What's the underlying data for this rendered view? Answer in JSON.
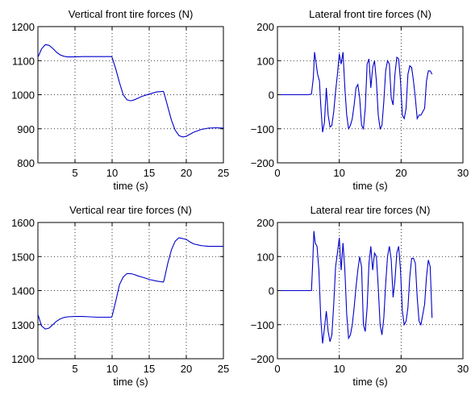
{
  "chart_data": [
    {
      "type": "line",
      "title": "Vertical front tire forces (N)",
      "xlabel": "time (s)",
      "ylabel": "",
      "xlim": [
        0,
        25
      ],
      "ylim": [
        800,
        1200
      ],
      "xticks": [
        5,
        10,
        15,
        20,
        25
      ],
      "yticks": [
        800,
        900,
        1000,
        1100,
        1200
      ],
      "grid": true,
      "color": "#0000cc",
      "series": [
        {
          "x": [
            0,
            0.5,
            1,
            1.5,
            2,
            2.5,
            3,
            3.5,
            4,
            5,
            6,
            7,
            8,
            9,
            9.9,
            10,
            10.5,
            11,
            11.5,
            12,
            12.5,
            13,
            13.5,
            14,
            15,
            16,
            16.9,
            17,
            17.5,
            18,
            18.5,
            19,
            19.5,
            20,
            20.5,
            21,
            22,
            23,
            24,
            25
          ],
          "y": [
            1110,
            1135,
            1147,
            1145,
            1136,
            1125,
            1117,
            1113,
            1111,
            1111,
            1112,
            1112,
            1112,
            1112,
            1112,
            1110,
            1075,
            1035,
            1000,
            985,
            982,
            985,
            990,
            995,
            1002,
            1008,
            1010,
            1005,
            965,
            925,
            896,
            880,
            876,
            878,
            884,
            890,
            898,
            902,
            903,
            902
          ]
        }
      ]
    },
    {
      "type": "line",
      "title": "Lateral front tire forces (N)",
      "xlabel": "time (s)",
      "ylabel": "",
      "xlim": [
        0,
        30
      ],
      "ylim": [
        -200,
        200
      ],
      "xticks": [
        0,
        10,
        20,
        30
      ],
      "yticks": [
        -200,
        -100,
        0,
        100,
        200
      ],
      "grid": true,
      "color": "#0000cc",
      "series": [
        {
          "x": [
            0,
            5,
            5.5,
            5.8,
            6,
            6.2,
            6.5,
            6.8,
            7,
            7.3,
            7.6,
            7.9,
            8.2,
            8.5,
            8.8,
            9.1,
            9.4,
            9.7,
            10,
            10.3,
            10.6,
            10.9,
            11.2,
            11.5,
            11.8,
            12.1,
            12.4,
            12.7,
            13,
            13.3,
            13.6,
            13.9,
            14.2,
            14.5,
            14.8,
            15.1,
            15.4,
            15.7,
            16,
            16.3,
            16.6,
            16.9,
            17.2,
            17.5,
            17.8,
            18.1,
            18.4,
            18.7,
            19,
            19.3,
            19.6,
            19.9,
            20.2,
            20.5,
            20.8,
            21.1,
            21.4,
            21.7,
            22,
            22.3,
            22.6,
            22.9,
            23.2,
            23.5,
            23.8,
            24.1,
            24.4,
            24.7,
            25
          ],
          "y": [
            0,
            0,
            2,
            50,
            125,
            100,
            60,
            40,
            -30,
            -110,
            -80,
            20,
            -60,
            -95,
            -90,
            -50,
            10,
            60,
            120,
            90,
            125,
            20,
            -60,
            -100,
            -90,
            -70,
            -30,
            20,
            30,
            -10,
            -90,
            -100,
            -40,
            90,
            105,
            20,
            80,
            100,
            40,
            -60,
            -100,
            -90,
            -20,
            70,
            100,
            90,
            -10,
            -30,
            60,
            110,
            105,
            40,
            -60,
            -70,
            -40,
            60,
            85,
            80,
            40,
            -10,
            -70,
            -60,
            -60,
            -50,
            -40,
            40,
            70,
            70,
            60
          ]
        }
      ]
    },
    {
      "type": "line",
      "title": "Vertical rear tire forces (N)",
      "xlabel": "time (s)",
      "ylabel": "",
      "xlim": [
        0,
        25
      ],
      "ylim": [
        1200,
        1600
      ],
      "xticks": [
        5,
        10,
        15,
        20,
        25
      ],
      "yticks": [
        1200,
        1300,
        1400,
        1500,
        1600
      ],
      "grid": true,
      "color": "#0000cc",
      "series": [
        {
          "x": [
            0,
            0.5,
            1,
            1.5,
            2,
            2.5,
            3,
            3.5,
            4,
            5,
            6,
            7,
            8,
            9,
            9.9,
            10,
            10.5,
            11,
            11.5,
            12,
            12.5,
            13,
            13.5,
            14,
            15,
            16,
            16.9,
            17,
            17.5,
            18,
            18.5,
            19,
            19.5,
            20,
            20.5,
            21,
            22,
            23,
            24,
            25
          ],
          "y": [
            1330,
            1296,
            1287,
            1290,
            1300,
            1310,
            1317,
            1321,
            1323,
            1324,
            1324,
            1323,
            1322,
            1322,
            1322,
            1325,
            1370,
            1418,
            1440,
            1450,
            1450,
            1447,
            1443,
            1440,
            1433,
            1428,
            1425,
            1430,
            1480,
            1520,
            1545,
            1555,
            1553,
            1550,
            1543,
            1537,
            1532,
            1530,
            1530,
            1530
          ]
        }
      ]
    },
    {
      "type": "line",
      "title": "Lateral rear tire forces (N)",
      "xlabel": "time (s)",
      "ylabel": "",
      "xlim": [
        0,
        30
      ],
      "ylim": [
        -200,
        200
      ],
      "xticks": [
        0,
        10,
        20,
        30
      ],
      "yticks": [
        -200,
        -100,
        0,
        100,
        200
      ],
      "grid": true,
      "color": "#0000cc",
      "series": [
        {
          "x": [
            0,
            5.5,
            5.7,
            5.9,
            6.1,
            6.4,
            6.7,
            7,
            7.3,
            7.6,
            7.9,
            8.2,
            8.5,
            8.8,
            9.1,
            9.4,
            9.7,
            10,
            10.3,
            10.6,
            10.9,
            11.2,
            11.5,
            11.8,
            12.1,
            12.4,
            12.7,
            13,
            13.3,
            13.6,
            13.9,
            14.2,
            14.5,
            14.8,
            15.1,
            15.4,
            15.7,
            16,
            16.3,
            16.6,
            16.9,
            17.2,
            17.5,
            17.8,
            18.1,
            18.4,
            18.7,
            19,
            19.3,
            19.6,
            19.9,
            20.2,
            20.5,
            20.8,
            21.1,
            21.4,
            21.7,
            22,
            22.3,
            22.6,
            22.9,
            23.2,
            23.5,
            23.8,
            24.1,
            24.4,
            24.7,
            25
          ],
          "y": [
            0,
            0,
            80,
            175,
            140,
            130,
            60,
            -80,
            -155,
            -110,
            -60,
            -120,
            -150,
            -130,
            -40,
            70,
            110,
            155,
            60,
            140,
            60,
            -70,
            -140,
            -130,
            -100,
            -50,
            10,
            60,
            100,
            70,
            -100,
            -120,
            -50,
            80,
            130,
            60,
            110,
            100,
            10,
            -100,
            -130,
            -80,
            20,
            100,
            130,
            90,
            -20,
            30,
            110,
            130,
            60,
            -60,
            -100,
            -90,
            -50,
            40,
            95,
            95,
            80,
            -20,
            -90,
            -100,
            -70,
            -40,
            40,
            90,
            70,
            -80
          ]
        }
      ]
    }
  ]
}
